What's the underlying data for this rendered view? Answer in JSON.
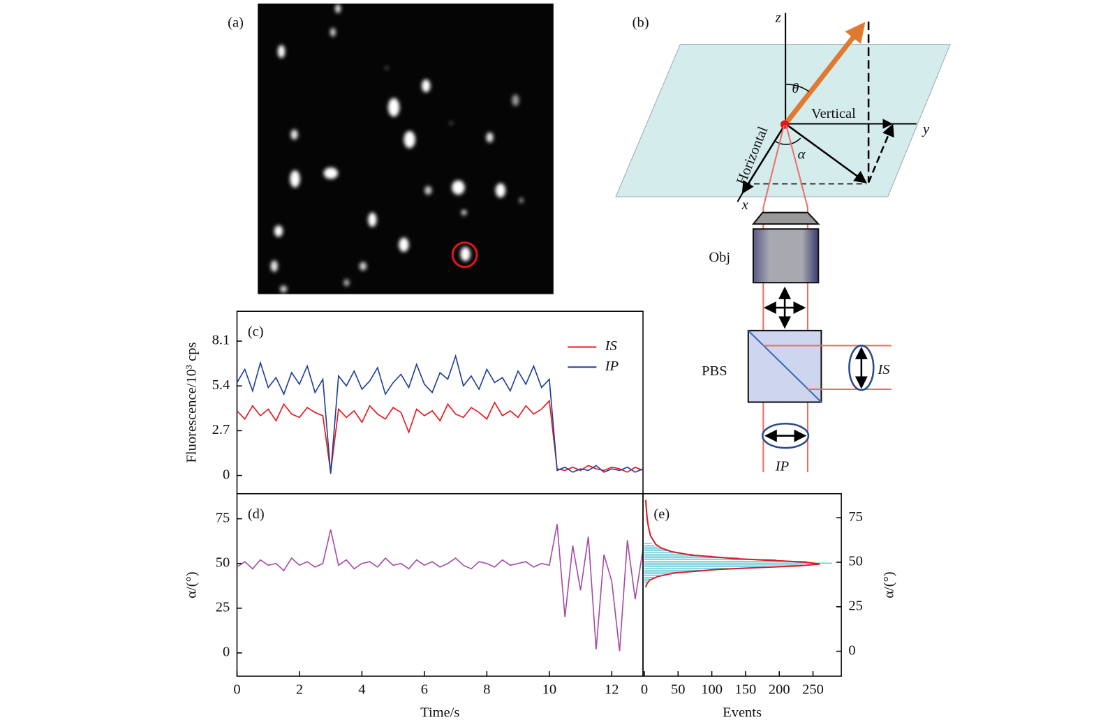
{
  "panels": {
    "a": {
      "label": "(a)"
    },
    "b": {
      "label": "(b)",
      "axes": {
        "x": "x",
        "y": "y",
        "z": "z"
      },
      "angles": {
        "theta": "θ",
        "alpha": "α"
      },
      "directions": {
        "vertical": "Vertical",
        "horizontal": "Horizontal"
      },
      "objective": "Obj",
      "splitter": "PBS",
      "outputs": {
        "s": "IS",
        "p": "IP"
      }
    }
  },
  "chart_data": [
    {
      "type": "line",
      "label": "(c)",
      "ylabel": "Fluorescence/10³ cps",
      "x": [
        0,
        0.25,
        0.5,
        0.75,
        1,
        1.25,
        1.5,
        1.75,
        2,
        2.25,
        2.5,
        2.75,
        3,
        3.25,
        3.5,
        3.75,
        4,
        4.25,
        4.5,
        4.75,
        5,
        5.25,
        5.5,
        5.75,
        6,
        6.25,
        6.5,
        6.75,
        7,
        7.25,
        7.5,
        7.75,
        8,
        8.25,
        8.5,
        8.75,
        9,
        9.25,
        9.5,
        9.75,
        10,
        10.25,
        10.5,
        10.75,
        11,
        11.25,
        11.5,
        11.75,
        12,
        12.25,
        12.5,
        12.75,
        13
      ],
      "series": [
        {
          "name": "IS",
          "color": "#e8141b",
          "values": [
            3.9,
            3.4,
            4.2,
            3.6,
            4.0,
            3.3,
            4.3,
            3.7,
            3.5,
            4.1,
            3.8,
            3.6,
            0.2,
            4.0,
            3.5,
            3.9,
            3.2,
            4.2,
            3.7,
            3.4,
            4.1,
            3.8,
            2.6,
            4.0,
            3.6,
            3.9,
            3.3,
            4.3,
            3.7,
            3.5,
            4.1,
            3.8,
            3.4,
            4.4,
            3.6,
            3.9,
            3.5,
            4.2,
            3.7,
            4.0,
            4.5,
            0.4,
            0.3,
            0.5,
            0.3,
            0.6,
            0.4,
            0.3,
            0.5,
            0.4,
            0.2,
            0.5,
            0.3
          ]
        },
        {
          "name": "IP",
          "color": "#1f3f99",
          "values": [
            5.6,
            6.4,
            5.1,
            6.8,
            5.3,
            5.9,
            4.9,
            6.2,
            5.5,
            6.6,
            5.0,
            5.8,
            0.1,
            6.0,
            5.4,
            6.3,
            5.2,
            5.7,
            6.5,
            4.9,
            5.6,
            6.1,
            5.3,
            6.7,
            5.5,
            5.0,
            6.2,
            5.8,
            7.2,
            5.4,
            6.0,
            5.2,
            6.4,
            5.6,
            5.9,
            5.1,
            6.3,
            5.5,
            6.6,
            5.3,
            5.8,
            0.3,
            0.5,
            0.2,
            0.4,
            0.3,
            0.6,
            0.2,
            0.4,
            0.3,
            0.5,
            0.2,
            0.4
          ]
        }
      ],
      "xlim": [
        0,
        13
      ],
      "ylim": [
        -1.1,
        9.9
      ],
      "yticks": [
        0,
        2.7,
        5.4,
        8.1
      ],
      "legend": "upper right"
    },
    {
      "type": "line",
      "label": "(d)",
      "xlabel": "Time/s",
      "ylabel": "α/(°)",
      "x": [
        0,
        0.25,
        0.5,
        0.75,
        1,
        1.25,
        1.5,
        1.75,
        2,
        2.25,
        2.5,
        2.75,
        3,
        3.25,
        3.5,
        3.75,
        4,
        4.25,
        4.5,
        4.75,
        5,
        5.25,
        5.5,
        5.75,
        6,
        6.25,
        6.5,
        6.75,
        7,
        7.25,
        7.5,
        7.75,
        8,
        8.25,
        8.5,
        8.75,
        9,
        9.25,
        9.5,
        9.75,
        10,
        10.25,
        10.5,
        10.75,
        11,
        11.25,
        11.5,
        11.75,
        12,
        12.25,
        12.5,
        12.75,
        13
      ],
      "series": [
        {
          "color": "#a64ca6",
          "values": [
            48,
            51,
            47,
            52,
            49,
            50,
            46,
            53,
            49,
            51,
            48,
            50,
            69,
            49,
            52,
            47,
            50,
            51,
            48,
            53,
            49,
            50,
            47,
            52,
            49,
            51,
            48,
            50,
            53,
            49,
            47,
            51,
            50,
            48,
            52,
            49,
            50,
            51,
            48,
            50,
            49,
            72,
            20,
            60,
            35,
            65,
            2,
            55,
            40,
            1,
            63,
            30,
            58
          ]
        }
      ],
      "xlim": [
        0,
        13
      ],
      "xticks": [
        0,
        2,
        4,
        6,
        8,
        10,
        12
      ],
      "ylim": [
        -13,
        89
      ],
      "yticks": [
        0,
        25,
        50,
        75
      ]
    },
    {
      "type": "histogram",
      "orientation": "horizontal",
      "label": "(e)",
      "xlabel": "Events",
      "ylabel": "α/(°)",
      "bins": [
        38,
        39,
        40,
        41,
        42,
        43,
        44,
        45,
        46,
        47,
        48,
        49,
        50,
        51,
        52,
        53,
        54,
        55,
        56,
        57,
        58,
        59,
        60,
        61
      ],
      "counts": [
        3,
        5,
        8,
        14,
        22,
        35,
        55,
        85,
        125,
        180,
        235,
        278,
        240,
        195,
        140,
        100,
        72,
        52,
        38,
        28,
        20,
        15,
        11
      ],
      "color": "#5bc8d8",
      "fit": {
        "color": "#d0202a",
        "alpha": [
          36,
          38,
          40,
          42,
          44,
          46,
          47,
          48,
          49,
          50,
          51,
          52,
          54,
          56,
          58,
          60,
          65,
          70,
          75,
          80,
          85
        ],
        "events": [
          2,
          4,
          8,
          20,
          45,
          110,
          170,
          230,
          260,
          240,
          190,
          135,
          70,
          40,
          25,
          17,
          9,
          6,
          4,
          3,
          2
        ]
      },
      "xlim": [
        -2,
        292
      ],
      "xticks": [
        0,
        50,
        100,
        150,
        200,
        250
      ],
      "ylim": [
        -14,
        88.5
      ],
      "yticks": [
        0,
        25,
        50,
        75
      ],
      "yaxis_side": "right"
    }
  ]
}
